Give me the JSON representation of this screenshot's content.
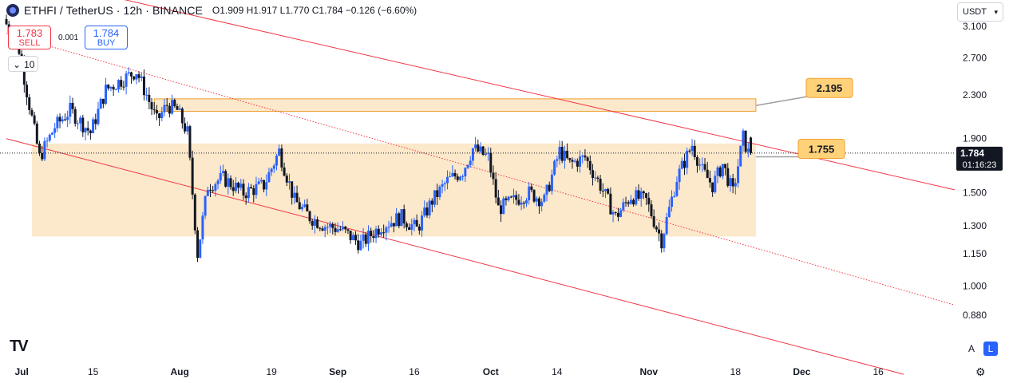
{
  "header": {
    "symbol": "ETHFI / TetherUS · 12h · BINANCE",
    "open_label": "O",
    "open": "1.909",
    "high_label": "H",
    "high": "1.917",
    "low_label": "L",
    "low": "1.770",
    "close_label": "C",
    "close": "1.784",
    "change": "−0.126 (−6.60%)"
  },
  "trade": {
    "sell_price": "1.783",
    "sell_label": "SELL",
    "spread": "0.001",
    "buy_price": "1.784",
    "buy_label": "BUY",
    "quantity": "10"
  },
  "currency": "USDT",
  "scale_buttons": {
    "auto": "A",
    "log": "L"
  },
  "colors": {
    "up": "#2962ff",
    "down": "#131722",
    "trend": "#f23645",
    "zone_fill": "#fbe0b8",
    "zone_border": "#f0a030",
    "label_fill": "#ffd27a",
    "last_price_bg": "#131722"
  },
  "chart_data": {
    "type": "candlestick",
    "symbol": "ETHFI/USDT",
    "interval": "12h",
    "y_scale": "log",
    "ylim": [
      0.82,
      3.35
    ],
    "y_ticks": [
      "3.100",
      "2.700",
      "2.300",
      "1.900",
      "1.500",
      "1.300",
      "1.150",
      "1.000",
      "0.880"
    ],
    "x_ticks": [
      {
        "label": "Jul",
        "date": "2024-07-01"
      },
      {
        "label": "15",
        "date": "2024-07-15"
      },
      {
        "label": "Aug",
        "date": "2024-08-01"
      },
      {
        "label": "19",
        "date": "2024-08-19"
      },
      {
        "label": "Sep",
        "date": "2024-09-01"
      },
      {
        "label": "16",
        "date": "2024-09-16"
      },
      {
        "label": "Oct",
        "date": "2024-10-01"
      },
      {
        "label": "14",
        "date": "2024-10-14"
      },
      {
        "label": "Nov",
        "date": "2024-11-01"
      },
      {
        "label": "18",
        "date": "2024-11-18"
      },
      {
        "label": "Dec",
        "date": "2024-12-01"
      },
      {
        "label": "16",
        "date": "2024-12-16"
      }
    ],
    "last_price": "1.784",
    "countdown": "01:16:23",
    "price_path": [
      [
        "2024-06-28",
        3.2
      ],
      [
        "2024-07-01",
        2.8
      ],
      [
        "2024-07-03",
        2.2
      ],
      [
        "2024-07-05",
        1.75
      ],
      [
        "2024-07-08",
        2.0
      ],
      [
        "2024-07-11",
        2.15
      ],
      [
        "2024-07-15",
        1.95
      ],
      [
        "2024-07-18",
        2.35
      ],
      [
        "2024-07-21",
        2.45
      ],
      [
        "2024-07-24",
        2.55
      ],
      [
        "2024-07-26",
        2.3
      ],
      [
        "2024-07-28",
        2.05
      ],
      [
        "2024-07-30",
        2.2
      ],
      [
        "2024-08-01",
        2.15
      ],
      [
        "2024-08-03",
        1.95
      ],
      [
        "2024-08-05",
        1.15
      ],
      [
        "2024-08-07",
        1.55
      ],
      [
        "2024-08-10",
        1.6
      ],
      [
        "2024-08-14",
        1.5
      ],
      [
        "2024-08-18",
        1.55
      ],
      [
        "2024-08-21",
        1.8
      ],
      [
        "2024-08-24",
        1.45
      ],
      [
        "2024-08-27",
        1.35
      ],
      [
        "2024-08-30",
        1.3
      ],
      [
        "2024-09-02",
        1.28
      ],
      [
        "2024-09-06",
        1.2
      ],
      [
        "2024-09-10",
        1.3
      ],
      [
        "2024-09-14",
        1.35
      ],
      [
        "2024-09-17",
        1.28
      ],
      [
        "2024-09-20",
        1.45
      ],
      [
        "2024-09-23",
        1.58
      ],
      [
        "2024-09-26",
        1.65
      ],
      [
        "2024-09-28",
        1.82
      ],
      [
        "2024-10-01",
        1.75
      ],
      [
        "2024-10-03",
        1.4
      ],
      [
        "2024-10-06",
        1.45
      ],
      [
        "2024-10-09",
        1.5
      ],
      [
        "2024-10-12",
        1.45
      ],
      [
        "2024-10-15",
        1.8
      ],
      [
        "2024-10-17",
        1.7
      ],
      [
        "2024-10-20",
        1.75
      ],
      [
        "2024-10-23",
        1.55
      ],
      [
        "2024-10-26",
        1.35
      ],
      [
        "2024-10-29",
        1.48
      ],
      [
        "2024-11-01",
        1.45
      ],
      [
        "2024-11-04",
        1.22
      ],
      [
        "2024-11-07",
        1.6
      ],
      [
        "2024-11-10",
        1.85
      ],
      [
        "2024-11-12",
        1.65
      ],
      [
        "2024-11-14",
        1.55
      ],
      [
        "2024-11-16",
        1.7
      ],
      [
        "2024-11-18",
        1.5
      ],
      [
        "2024-11-20",
        1.909
      ],
      [
        "2024-11-21",
        1.784
      ]
    ],
    "zones": [
      {
        "date_from": "2024-07-27",
        "date_to": "2024-11-22",
        "price_low": 2.14,
        "price_high": 2.26
      },
      {
        "date_from": "2024-07-03",
        "date_to": "2024-11-22",
        "price_low": 1.24,
        "price_high": 1.86
      }
    ],
    "trend_lines": [
      {
        "style": "solid",
        "from": [
          "2024-07-04",
          3.8
        ],
        "to": [
          "2024-12-31",
          1.52
        ]
      },
      {
        "style": "dotted",
        "from": [
          "2024-06-28",
          3.0
        ],
        "to": [
          "2024-12-31",
          0.92
        ]
      },
      {
        "style": "solid",
        "from": [
          "2024-06-28",
          1.9
        ],
        "to": [
          "2024-12-21",
          0.68
        ]
      }
    ],
    "callouts": [
      {
        "label": "2.195",
        "date": "2024-11-22",
        "price": 2.195
      },
      {
        "label": "1.755",
        "date": "2024-11-22",
        "price": 1.755
      }
    ]
  }
}
